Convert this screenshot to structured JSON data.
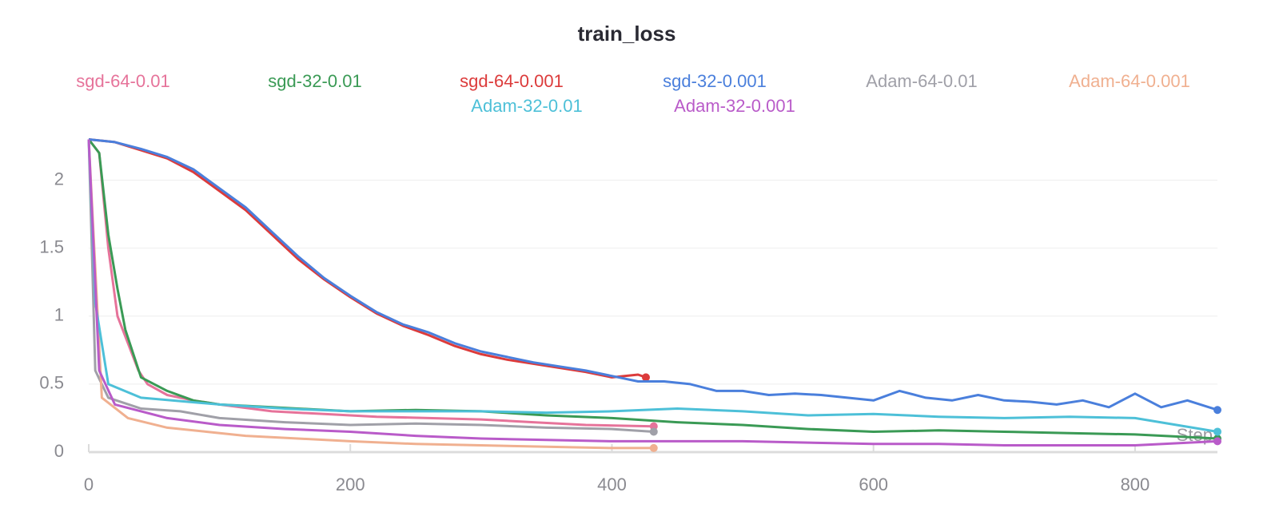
{
  "chart_data": {
    "type": "line",
    "title": "train_loss",
    "x_label": "Step",
    "xlim": [
      0,
      863
    ],
    "ylim": [
      0,
      2.35
    ],
    "xticks": [
      0,
      200,
      400,
      600,
      800
    ],
    "yticks": [
      0,
      0.5,
      1,
      1.5,
      2
    ],
    "grid": true,
    "series": [
      {
        "name": "sgd-64-0.01",
        "color": "#e6739a",
        "x": [
          0,
          8,
          15,
          22,
          30,
          38,
          45,
          60,
          80,
          100,
          140,
          180,
          220,
          260,
          300,
          340,
          380,
          432
        ],
        "values": [
          2.3,
          2.2,
          1.5,
          1.0,
          0.8,
          0.6,
          0.5,
          0.42,
          0.38,
          0.35,
          0.3,
          0.28,
          0.26,
          0.25,
          0.24,
          0.22,
          0.2,
          0.19
        ]
      },
      {
        "name": "sgd-32-0.01",
        "color": "#3a9a55",
        "x": [
          0,
          8,
          15,
          22,
          28,
          40,
          60,
          80,
          100,
          140,
          200,
          250,
          300,
          350,
          400,
          450,
          500,
          550,
          600,
          650,
          700,
          750,
          800,
          863
        ],
        "values": [
          2.3,
          2.2,
          1.6,
          1.2,
          0.9,
          0.55,
          0.45,
          0.38,
          0.35,
          0.33,
          0.3,
          0.31,
          0.3,
          0.27,
          0.25,
          0.22,
          0.2,
          0.17,
          0.15,
          0.16,
          0.15,
          0.14,
          0.13,
          0.1
        ]
      },
      {
        "name": "sgd-64-0.001",
        "color": "#dc3b3b",
        "x": [
          0,
          20,
          40,
          60,
          80,
          100,
          120,
          140,
          160,
          180,
          200,
          220,
          240,
          260,
          280,
          300,
          320,
          340,
          360,
          380,
          400,
          420,
          426
        ],
        "values": [
          2.3,
          2.28,
          2.22,
          2.16,
          2.06,
          1.92,
          1.78,
          1.6,
          1.42,
          1.27,
          1.14,
          1.02,
          0.93,
          0.86,
          0.78,
          0.72,
          0.68,
          0.65,
          0.62,
          0.59,
          0.55,
          0.57,
          0.55
        ]
      },
      {
        "name": "sgd-32-0.001",
        "color": "#4a7fdc",
        "x": [
          0,
          20,
          40,
          60,
          80,
          100,
          120,
          140,
          160,
          180,
          200,
          220,
          240,
          260,
          280,
          300,
          320,
          340,
          360,
          380,
          400,
          420,
          440,
          460,
          480,
          500,
          520,
          540,
          560,
          580,
          600,
          620,
          640,
          660,
          680,
          700,
          720,
          740,
          760,
          780,
          800,
          820,
          840,
          863
        ],
        "values": [
          2.3,
          2.28,
          2.23,
          2.17,
          2.08,
          1.94,
          1.8,
          1.62,
          1.44,
          1.28,
          1.15,
          1.03,
          0.94,
          0.88,
          0.8,
          0.74,
          0.7,
          0.66,
          0.63,
          0.6,
          0.56,
          0.52,
          0.52,
          0.5,
          0.45,
          0.45,
          0.42,
          0.43,
          0.42,
          0.4,
          0.38,
          0.45,
          0.4,
          0.38,
          0.42,
          0.38,
          0.37,
          0.35,
          0.38,
          0.33,
          0.43,
          0.33,
          0.38,
          0.31
        ]
      },
      {
        "name": "Adam-64-0.01",
        "color": "#a0a0a8",
        "x": [
          0,
          5,
          15,
          40,
          70,
          100,
          150,
          200,
          250,
          300,
          350,
          400,
          432
        ],
        "values": [
          2.3,
          0.6,
          0.4,
          0.32,
          0.3,
          0.25,
          0.22,
          0.2,
          0.21,
          0.2,
          0.18,
          0.17,
          0.15
        ]
      },
      {
        "name": "Adam-64-0.001",
        "color": "#f0b090",
        "x": [
          0,
          10,
          30,
          60,
          90,
          120,
          160,
          200,
          250,
          300,
          350,
          400,
          432
        ],
        "values": [
          2.3,
          0.4,
          0.25,
          0.18,
          0.15,
          0.12,
          0.1,
          0.08,
          0.06,
          0.05,
          0.04,
          0.03,
          0.03
        ]
      },
      {
        "name": "Adam-32-0.01",
        "color": "#4dc0d8",
        "x": [
          0,
          5,
          15,
          40,
          100,
          150,
          200,
          250,
          300,
          350,
          400,
          450,
          500,
          550,
          600,
          650,
          700,
          750,
          800,
          863
        ],
        "values": [
          2.3,
          1.1,
          0.5,
          0.4,
          0.35,
          0.32,
          0.3,
          0.3,
          0.3,
          0.29,
          0.3,
          0.32,
          0.3,
          0.27,
          0.28,
          0.26,
          0.25,
          0.26,
          0.25,
          0.15
        ]
      },
      {
        "name": "Adam-32-0.001",
        "color": "#b95bc9",
        "x": [
          0,
          8,
          20,
          60,
          100,
          150,
          200,
          250,
          300,
          350,
          400,
          450,
          500,
          550,
          600,
          650,
          700,
          750,
          800,
          863
        ],
        "values": [
          2.3,
          0.6,
          0.35,
          0.25,
          0.2,
          0.17,
          0.15,
          0.12,
          0.1,
          0.09,
          0.08,
          0.08,
          0.08,
          0.07,
          0.06,
          0.06,
          0.05,
          0.05,
          0.05,
          0.08
        ]
      }
    ]
  }
}
